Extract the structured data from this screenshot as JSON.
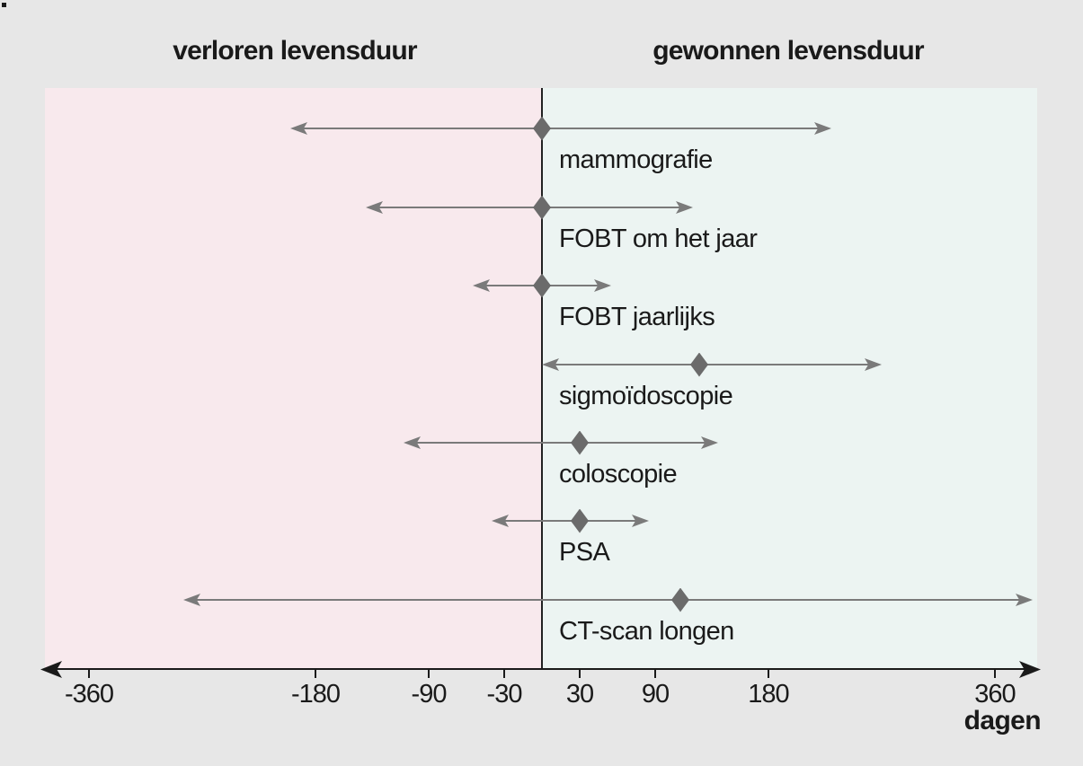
{
  "colors": {
    "background": "#e7e7e7",
    "lost_region": "#f8e9ed",
    "gained_region": "#ecf4f2",
    "arrow": "#7a7a7a",
    "diamond": "#6b6b6b",
    "axis": "#1a1a1a",
    "text": "#1a1a1a"
  },
  "chart_data": {
    "type": "range_interval",
    "title_left": "verloren levensduur",
    "title_right": "gewonnen levensduur",
    "xlabel": "dagen",
    "xlim": [
      -395,
      395
    ],
    "x_ticks": [
      -360,
      -180,
      -90,
      -30,
      30,
      90,
      180,
      360
    ],
    "x_tick_labels": [
      "-360",
      "-180",
      "-90",
      "-30",
      "30",
      "90",
      "180",
      "360"
    ],
    "zero_line": 0,
    "grid": false,
    "legend": null,
    "series": [
      {
        "name": "mammografie",
        "low": -200,
        "high": 230,
        "point": 0
      },
      {
        "name": "FOBT om het jaar",
        "low": -140,
        "high": 120,
        "point": 0
      },
      {
        "name": "FOBT jaarlijks",
        "low": -55,
        "high": 55,
        "point": 0
      },
      {
        "name": "sigmoïdoscopie",
        "low": 0,
        "high": 270,
        "point": 125
      },
      {
        "name": "coloscopie",
        "low": -110,
        "high": 140,
        "point": 30
      },
      {
        "name": "PSA",
        "low": -40,
        "high": 85,
        "point": 30
      },
      {
        "name": "CT-scan longen",
        "low": -285,
        "high": 390,
        "point": 110
      }
    ]
  }
}
